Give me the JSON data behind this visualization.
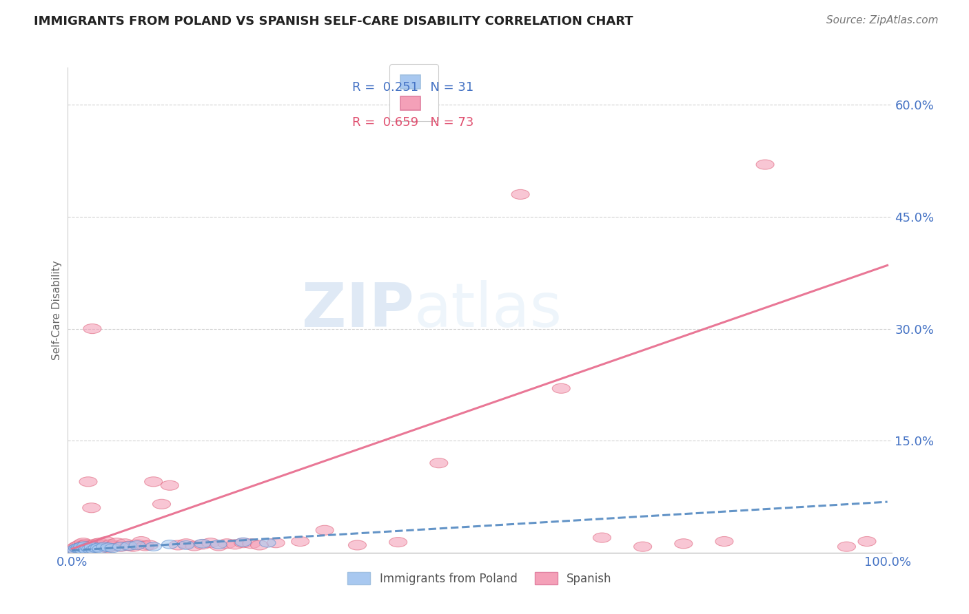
{
  "title": "IMMIGRANTS FROM POLAND VS SPANISH SELF-CARE DISABILITY CORRELATION CHART",
  "source": "Source: ZipAtlas.com",
  "ylabel": "Self-Care Disability",
  "xlim": [
    0,
    1.0
  ],
  "ylim": [
    0,
    0.65
  ],
  "legend_r1": "0.251",
  "legend_n1": "31",
  "legend_r2": "0.659",
  "legend_n2": "73",
  "color_blue": "#a8c8f0",
  "color_pink": "#f4a0b8",
  "color_blue_edge": "#6090d0",
  "color_pink_edge": "#e06880",
  "color_blue_line": "#5b8ec4",
  "color_pink_line": "#e87090",
  "color_blue_text": "#4472c4",
  "color_pink_text": "#e05070",
  "color_axis_text": "#4472c4",
  "background": "#ffffff",
  "blue_x": [
    0.003,
    0.005,
    0.006,
    0.008,
    0.009,
    0.01,
    0.012,
    0.013,
    0.015,
    0.016,
    0.018,
    0.02,
    0.022,
    0.025,
    0.027,
    0.03,
    0.033,
    0.035,
    0.04,
    0.045,
    0.05,
    0.06,
    0.07,
    0.08,
    0.1,
    0.12,
    0.14,
    0.16,
    0.18,
    0.21,
    0.24
  ],
  "blue_y": [
    0.004,
    0.003,
    0.006,
    0.005,
    0.007,
    0.005,
    0.008,
    0.004,
    0.006,
    0.009,
    0.004,
    0.007,
    0.005,
    0.008,
    0.004,
    0.006,
    0.007,
    0.005,
    0.008,
    0.007,
    0.006,
    0.008,
    0.009,
    0.01,
    0.008,
    0.011,
    0.01,
    0.012,
    0.011,
    0.014,
    0.013
  ],
  "pink_x": [
    0.004,
    0.005,
    0.006,
    0.007,
    0.008,
    0.009,
    0.01,
    0.011,
    0.012,
    0.013,
    0.014,
    0.015,
    0.016,
    0.017,
    0.018,
    0.019,
    0.02,
    0.021,
    0.022,
    0.023,
    0.024,
    0.025,
    0.026,
    0.027,
    0.028,
    0.03,
    0.032,
    0.034,
    0.036,
    0.038,
    0.04,
    0.042,
    0.045,
    0.048,
    0.05,
    0.055,
    0.06,
    0.065,
    0.07,
    0.075,
    0.08,
    0.085,
    0.09,
    0.095,
    0.1,
    0.11,
    0.12,
    0.13,
    0.14,
    0.15,
    0.16,
    0.17,
    0.18,
    0.19,
    0.2,
    0.21,
    0.22,
    0.23,
    0.25,
    0.28,
    0.31,
    0.35,
    0.4,
    0.45,
    0.55,
    0.6,
    0.65,
    0.7,
    0.75,
    0.8,
    0.85,
    0.95,
    0.975
  ],
  "pink_y": [
    0.006,
    0.004,
    0.008,
    0.005,
    0.009,
    0.005,
    0.007,
    0.011,
    0.006,
    0.009,
    0.013,
    0.007,
    0.01,
    0.006,
    0.011,
    0.007,
    0.095,
    0.006,
    0.009,
    0.008,
    0.06,
    0.3,
    0.008,
    0.01,
    0.007,
    0.012,
    0.009,
    0.013,
    0.008,
    0.01,
    0.007,
    0.015,
    0.007,
    0.011,
    0.009,
    0.013,
    0.008,
    0.012,
    0.009,
    0.008,
    0.011,
    0.015,
    0.009,
    0.01,
    0.095,
    0.065,
    0.09,
    0.01,
    0.012,
    0.009,
    0.011,
    0.013,
    0.009,
    0.012,
    0.011,
    0.013,
    0.012,
    0.01,
    0.013,
    0.015,
    0.03,
    0.01,
    0.014,
    0.12,
    0.48,
    0.22,
    0.02,
    0.008,
    0.012,
    0.015,
    0.52,
    0.008,
    0.015
  ],
  "pink_trend_x0": 0.0,
  "pink_trend_x1": 1.0,
  "pink_trend_y0": 0.005,
  "pink_trend_y1": 0.385,
  "blue_trend_x0": 0.0,
  "blue_trend_x1": 1.0,
  "blue_trend_y0": 0.003,
  "blue_trend_y1": 0.068
}
